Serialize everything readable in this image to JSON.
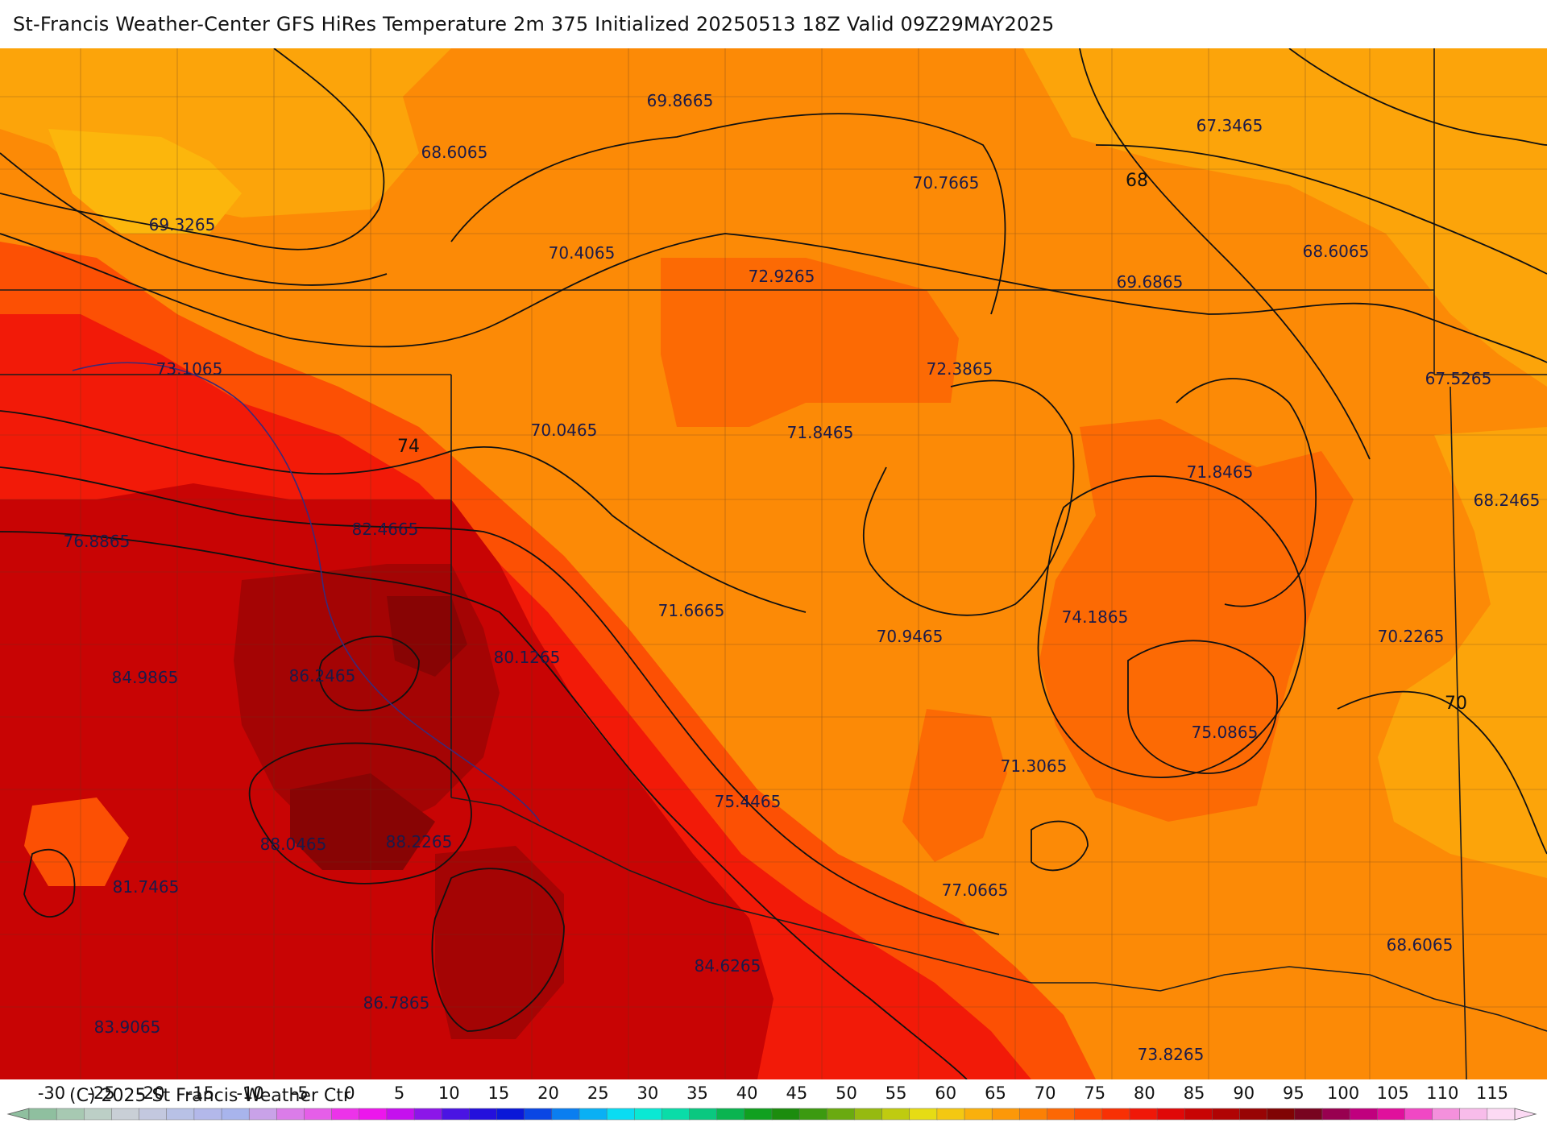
{
  "title": "St-Francis Weather-Center GFS HiRes Temperature 2m  375 Initialized 20250513 18Z Valid 09Z29MAY2025",
  "copyright": "(C) 2025 St Francis Weather Ctr",
  "map": {
    "contour_labels": [
      {
        "text": "68"
      },
      {
        "text": "70"
      },
      {
        "text": "74"
      }
    ],
    "point_values": [
      "69.8665",
      "68.6065",
      "69.3265",
      "70.4065",
      "70.7665",
      "67.3465",
      "68.6065",
      "69.6865",
      "72.9265",
      "73.1065",
      "72.3865",
      "67.5265",
      "70.0465",
      "71.8465",
      "71.8465",
      "68.2465",
      "76.8865",
      "82.4665",
      "71.6665",
      "70.9465",
      "74.1865",
      "70.2265",
      "84.9865",
      "86.2465",
      "80.1265",
      "75.0865",
      "71.3065",
      "75.4465",
      "88.0465",
      "88.2265",
      "81.7465",
      "77.0665",
      "84.6265",
      "68.6065",
      "86.7865",
      "83.9065",
      "73.8265"
    ]
  },
  "legend": {
    "ticks": [
      "-30",
      "-25",
      "-20",
      "-15",
      "-10",
      "-5",
      "0",
      "5",
      "10",
      "15",
      "20",
      "25",
      "30",
      "35",
      "40",
      "45",
      "50",
      "55",
      "60",
      "65",
      "70",
      "75",
      "80",
      "85",
      "90",
      "95",
      "100",
      "105",
      "110",
      "115"
    ],
    "colors": [
      "#8fbf9f",
      "#a7c9b2",
      "#bccfc6",
      "#c9cfd6",
      "#c3c8df",
      "#b8c1e6",
      "#b3b8ea",
      "#a8b4ec",
      "#c9a2e8",
      "#db7ce9",
      "#e55ee8",
      "#ec33e9",
      "#ec16ec",
      "#c510ee",
      "#8c16e9",
      "#4a14e3",
      "#2410dc",
      "#0a18d8",
      "#0a46e4",
      "#0a7ef0",
      "#0ab0f4",
      "#0adcf2",
      "#0ae8d4",
      "#0adca8",
      "#0ac880",
      "#0ab450",
      "#10a020",
      "#1c8c0e",
      "#3c9a10",
      "#6aaa10",
      "#96ba10",
      "#bfcb10",
      "#e6dc14",
      "#f4c812",
      "#fab00c",
      "#fc9808",
      "#fc8004",
      "#fc6804",
      "#fc4c04",
      "#f83004",
      "#f01808",
      "#e00808",
      "#c80404",
      "#b00404",
      "#980404",
      "#800404",
      "#780420",
      "#980050",
      "#c0007e",
      "#e0109c",
      "#f048c4",
      "#f490dc",
      "#f8bcea",
      "#fcdaf4"
    ]
  }
}
